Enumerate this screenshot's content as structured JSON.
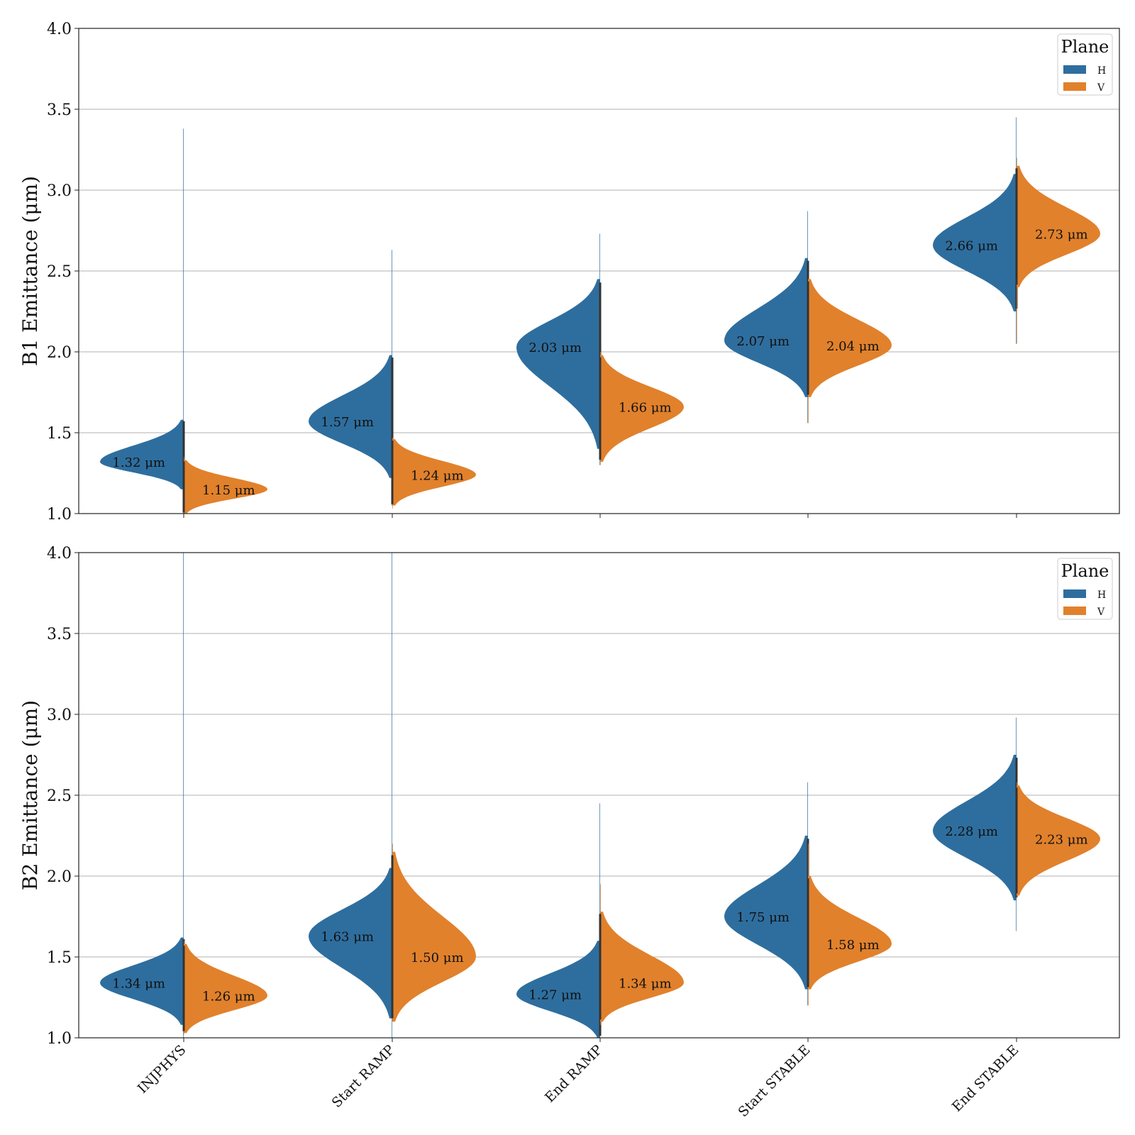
{
  "colors": {
    "H": "#2e6e9e",
    "V": "#e1812c",
    "grid": "#b0b0b0",
    "axis": "#222222",
    "center": "#333333"
  },
  "chart_data": [
    {
      "type": "violin",
      "ylabel": "B1 Emittance (μm)",
      "ylim": [
        1.0,
        4.0
      ],
      "yticks": [
        "1.0",
        "1.5",
        "2.0",
        "2.5",
        "3.0",
        "3.5",
        "4.0"
      ],
      "grid": true,
      "legend": {
        "title": "Plane",
        "position": "top-right",
        "entries": [
          "H",
          "V"
        ]
      },
      "categories": [
        "INJPHYS",
        "Start RAMP",
        "End RAMP",
        "Start STABLE",
        "End STABLE"
      ],
      "series": [
        {
          "name": "H",
          "annotations": [
            "1.32 μm",
            "1.57 μm",
            "2.03 μm",
            "2.07 μm",
            "2.66 μm"
          ],
          "medians": [
            1.32,
            1.57,
            2.03,
            2.07,
            2.66
          ],
          "ranges": [
            [
              1.0,
              3.38
            ],
            [
              1.05,
              2.63
            ],
            [
              1.3,
              2.73
            ],
            [
              1.56,
              2.87
            ],
            [
              2.05,
              3.45
            ]
          ],
          "body_ranges": [
            [
              1.15,
              1.58
            ],
            [
              1.22,
              1.98
            ],
            [
              1.4,
              2.45
            ],
            [
              1.72,
              2.58
            ],
            [
              2.25,
              3.1
            ]
          ]
        },
        {
          "name": "V",
          "annotations": [
            "1.15 μm",
            "1.24 μm",
            "1.66 μm",
            "2.04 μm",
            "2.73 μm"
          ],
          "medians": [
            1.15,
            1.24,
            1.66,
            2.04,
            2.73
          ],
          "ranges": [
            [
              1.0,
              1.35
            ],
            [
              1.03,
              1.47
            ],
            [
              1.3,
              2.0
            ],
            [
              1.56,
              2.45
            ],
            [
              2.05,
              3.2
            ]
          ],
          "body_ranges": [
            [
              1.0,
              1.33
            ],
            [
              1.05,
              1.46
            ],
            [
              1.32,
              1.98
            ],
            [
              1.72,
              2.45
            ],
            [
              2.4,
              3.15
            ]
          ]
        }
      ]
    },
    {
      "type": "violin",
      "ylabel": "B2 Emittance (μm)",
      "ylim": [
        1.0,
        4.0
      ],
      "yticks": [
        "1.0",
        "1.5",
        "2.0",
        "2.5",
        "3.0",
        "3.5",
        "4.0"
      ],
      "grid": true,
      "legend": {
        "title": "Plane",
        "position": "top-right",
        "entries": [
          "H",
          "V"
        ]
      },
      "categories": [
        "INJPHYS",
        "Start RAMP",
        "End RAMP",
        "Start STABLE",
        "End STABLE"
      ],
      "series": [
        {
          "name": "H",
          "annotations": [
            "1.34 μm",
            "1.63 μm",
            "1.27 μm",
            "1.75 μm",
            "2.28 μm"
          ],
          "medians": [
            1.34,
            1.63,
            1.27,
            1.75,
            2.28
          ],
          "ranges": [
            [
              1.0,
              4.0
            ],
            [
              1.0,
              4.0
            ],
            [
              1.0,
              2.45
            ],
            [
              1.2,
              2.58
            ],
            [
              1.66,
              2.98
            ]
          ],
          "body_ranges": [
            [
              1.08,
              1.62
            ],
            [
              1.12,
              2.05
            ],
            [
              1.0,
              1.6
            ],
            [
              1.3,
              2.25
            ],
            [
              1.85,
              2.75
            ]
          ]
        },
        {
          "name": "V",
          "annotations": [
            "1.26 μm",
            "1.50 μm",
            "1.34 μm",
            "1.58 μm",
            "2.23 μm"
          ],
          "medians": [
            1.26,
            1.5,
            1.34,
            1.58,
            2.23
          ],
          "ranges": [
            [
              1.02,
              1.6
            ],
            [
              1.1,
              2.2
            ],
            [
              1.08,
              1.95
            ],
            [
              1.2,
              2.2
            ],
            [
              1.87,
              2.58
            ]
          ],
          "body_ranges": [
            [
              1.03,
              1.58
            ],
            [
              1.1,
              2.15
            ],
            [
              1.1,
              1.78
            ],
            [
              1.3,
              2.0
            ],
            [
              1.88,
              2.56
            ]
          ]
        }
      ]
    }
  ]
}
